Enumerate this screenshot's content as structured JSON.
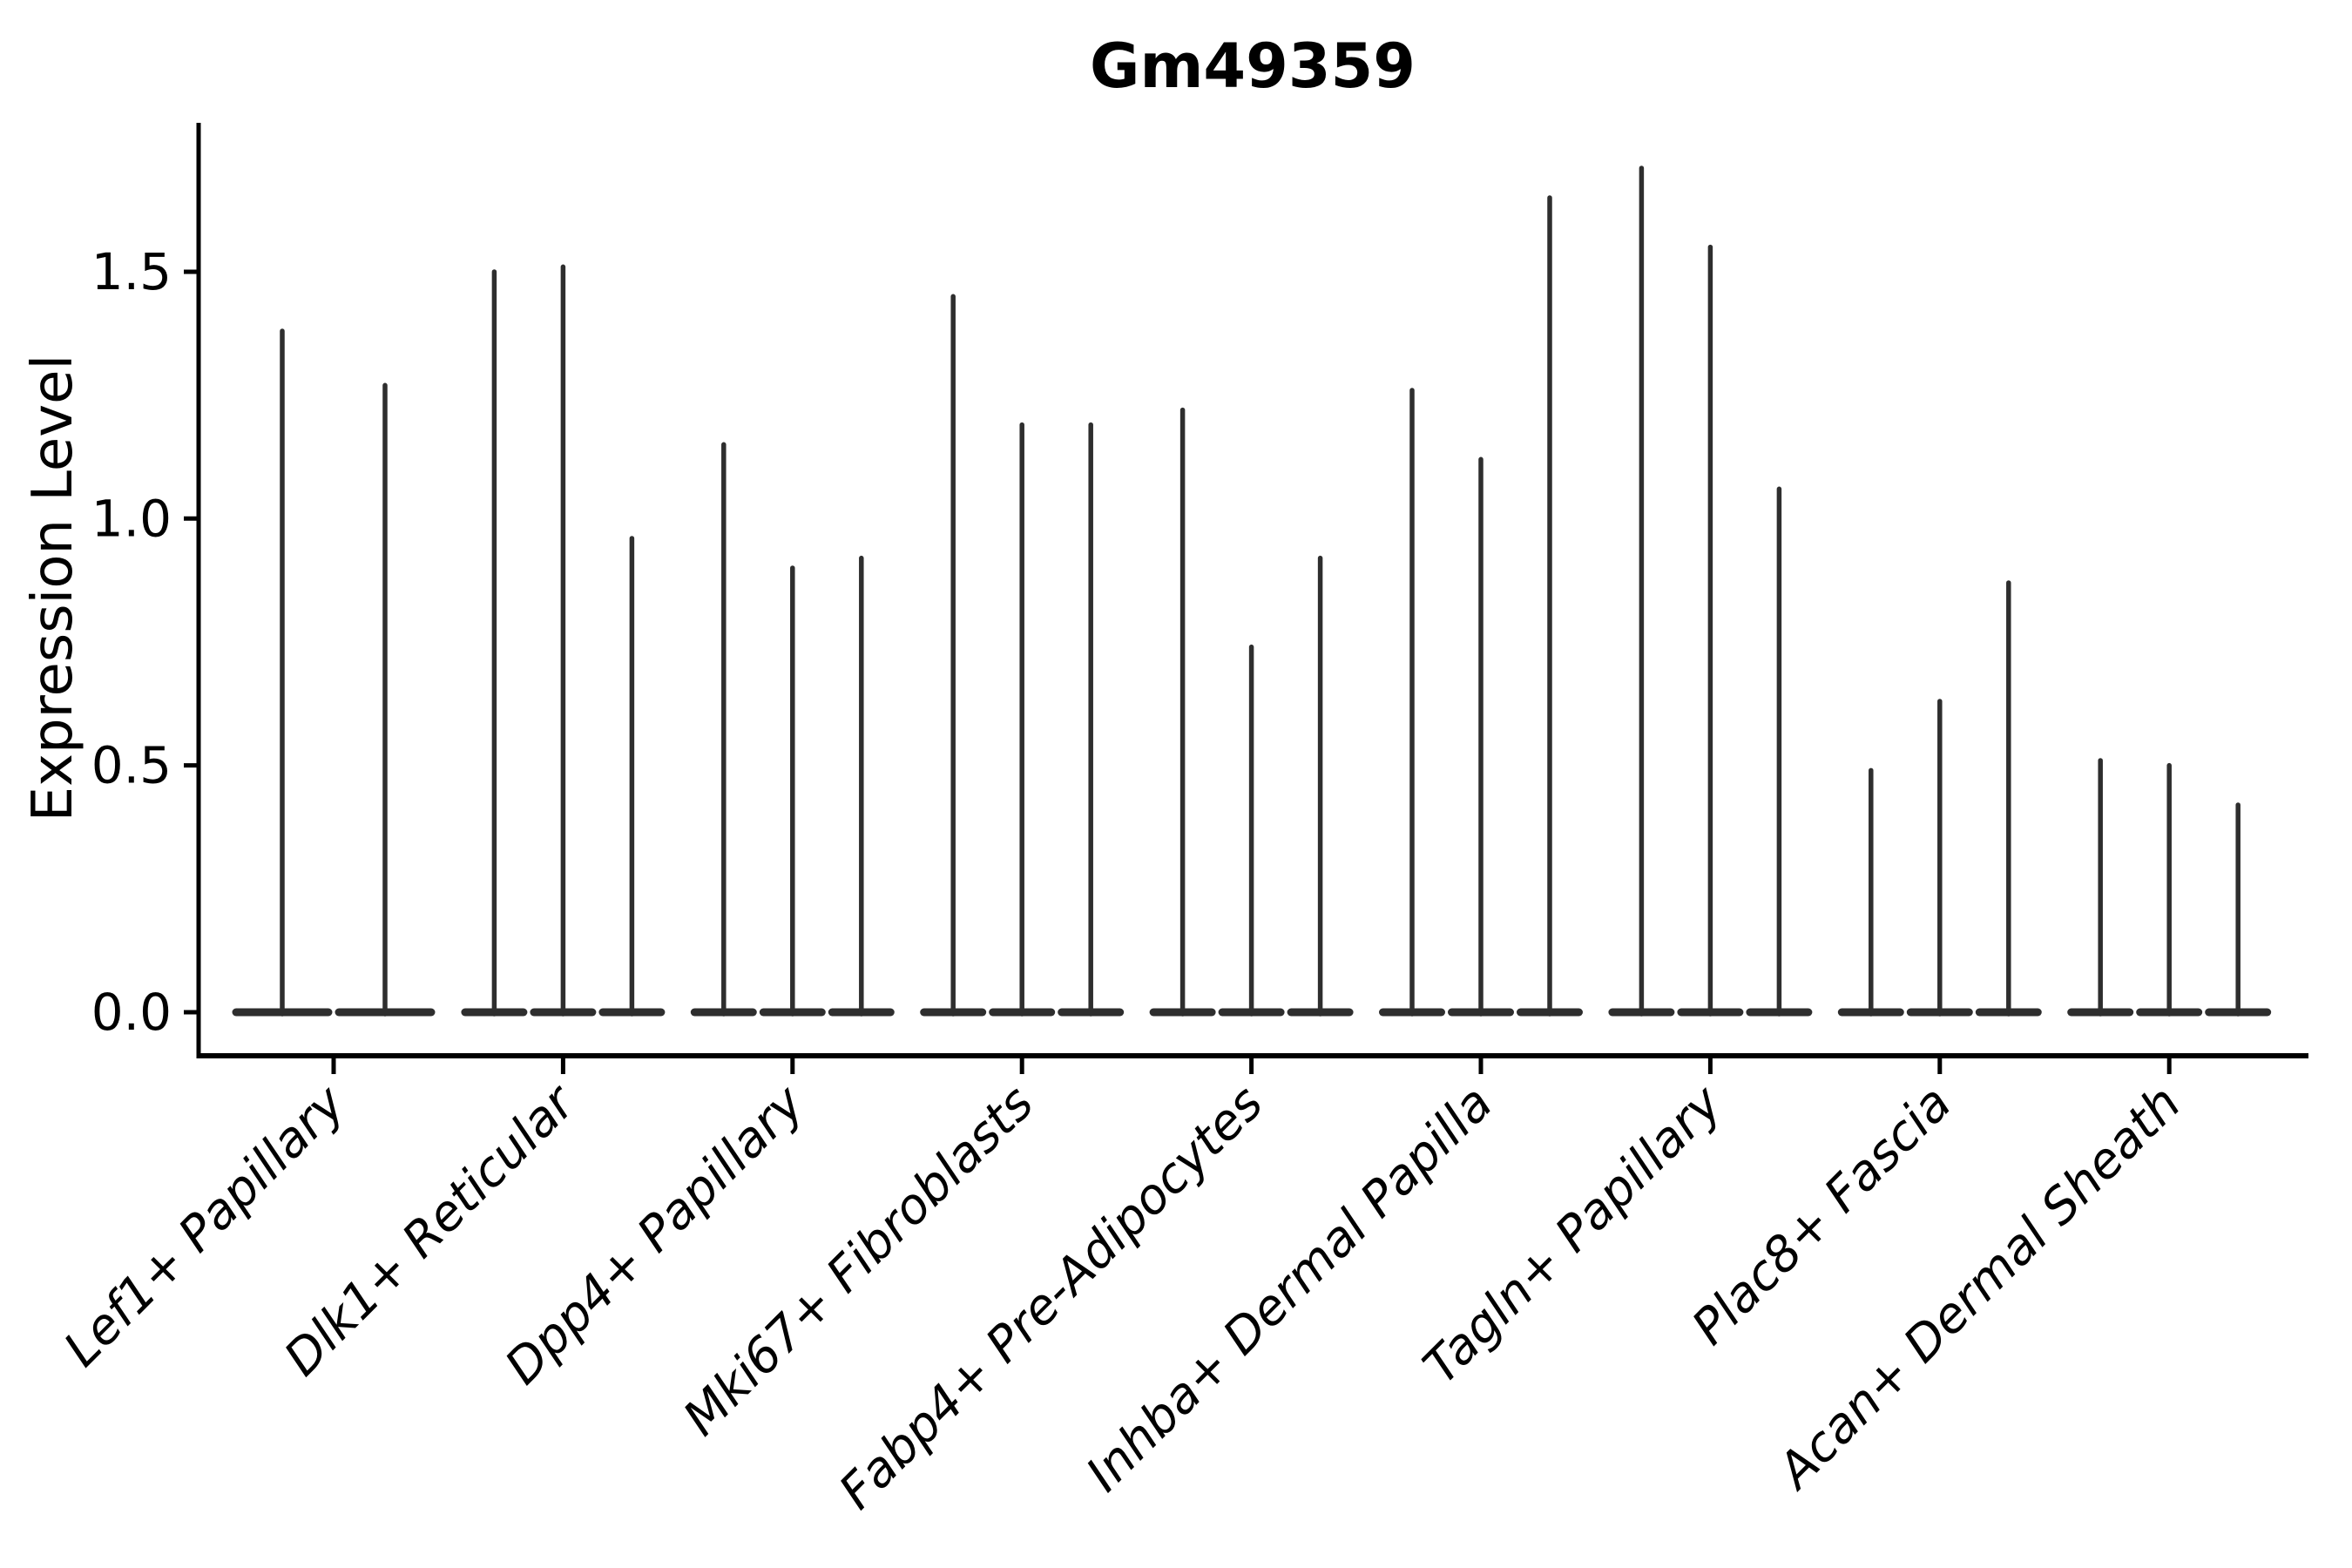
{
  "chart_data": {
    "type": "violin",
    "title": "Gm49359",
    "xlabel": "",
    "ylabel": "Expression Level",
    "legend": "none",
    "grid": false,
    "background_color": "#ffffff",
    "axis_color": "#000000",
    "violin_color": "#2e2e2e",
    "ylim": [
      -0.08,
      1.8
    ],
    "yticks": [
      0.0,
      0.5,
      1.0,
      1.5
    ],
    "ytick_labels": [
      "0.0",
      "0.5",
      "1.0",
      "1.5"
    ],
    "categories": [
      "Lef1+ Papillary",
      "Dlk1+ Reticular",
      "Dpp4+ Papillary",
      "Mki67+ Fibroblasts",
      "Fabp4+ Pre-Adipocytes",
      "Inhba+ Dermal Papilla",
      "Tagln+ Papillary",
      "Plac8+ Fascia",
      "Acan+ Dermal Sheath"
    ],
    "groups": [
      {
        "category": "Lef1+ Papillary",
        "violin_maxima": [
          1.38,
          1.27
        ]
      },
      {
        "category": "Dlk1+ Reticular",
        "violin_maxima": [
          1.5,
          1.51,
          0.96
        ]
      },
      {
        "category": "Dpp4+ Papillary",
        "violin_maxima": [
          1.15,
          0.9,
          0.92
        ]
      },
      {
        "category": "Mki67+ Fibroblasts",
        "violin_maxima": [
          1.45,
          1.19,
          1.19
        ]
      },
      {
        "category": "Fabp4+ Pre-Adipocytes",
        "violin_maxima": [
          1.22,
          0.74,
          0.92
        ]
      },
      {
        "category": "Inhba+ Dermal Papilla",
        "violin_maxima": [
          1.26,
          1.12,
          1.65
        ]
      },
      {
        "category": "Tagln+ Papillary",
        "violin_maxima": [
          1.71,
          1.55,
          1.06
        ]
      },
      {
        "category": "Plac8+ Fascia",
        "violin_maxima": [
          0.49,
          0.63,
          0.87
        ]
      },
      {
        "category": "Acan+ Dermal Sheath",
        "violin_maxima": [
          0.51,
          0.5,
          0.42
        ]
      }
    ],
    "shape_note": "each violin is a near-zero-width density spike rising from a wide flat bulge at expression level 0"
  }
}
